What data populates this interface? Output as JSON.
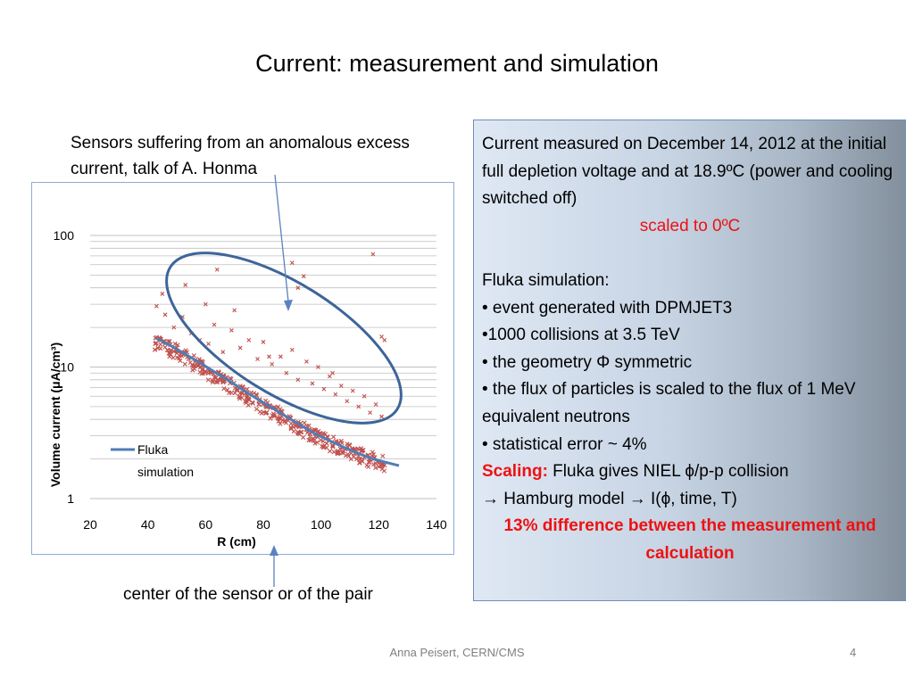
{
  "slide": {
    "title": "Current: measurement and simulation",
    "annotation_top": "Sensors suffering from an anomalous excess current, talk of A. Honma",
    "annotation_bottom": "center of the sensor or of the pair",
    "footer": "Anna Peisert, CERN/CMS",
    "page_number": "4"
  },
  "infobox": {
    "line1": "Current measured on December 14, 2012 at the initial full depletion voltage and at 18.9ºC (power and cooling switched off)",
    "scaled": "scaled to 0ºC",
    "fluka_heading": "Fluka simulation:",
    "bullet1": "• event generated with DPMJET3",
    "bullet2": "•1000 collisions at 3.5 TeV",
    "bullet3": "• the geometry Φ symmetric",
    "bullet4": "• the flux of particles is scaled to the flux of 1 MeV equivalent neutrons",
    "bullet5": "• statistical error ~ 4%",
    "scaling_label": "Scaling:",
    "scaling_text": " Fluka gives NIEL ϕ/p-p collision",
    "hamburg": "→ Hamburg model → I(ϕ, time, T)",
    "difference": "13% difference between the measurement and calculation"
  },
  "colors": {
    "line": "#4f7db5",
    "marker": "#c0504d",
    "ellipse": "#3d6599",
    "arrow": "#5a82c0",
    "emphasis": "#ee1111"
  },
  "chart_data": {
    "type": "scatter",
    "xlabel": "R (cm)",
    "ylabel": "Volume current (μA/cm³)",
    "xlim": [
      20,
      140
    ],
    "ylim": [
      1,
      100
    ],
    "yscale": "log",
    "x_ticks": [
      "20",
      "40",
      "60",
      "80",
      "100",
      "120",
      "140"
    ],
    "y_ticks": [
      "1",
      "10",
      "100"
    ],
    "grid": "horizontal",
    "legend": {
      "position": "bottom-left",
      "entries": [
        "Fluka",
        "simulation"
      ]
    },
    "fluka_simulation": {
      "x": [
        43,
        48,
        53,
        58,
        63,
        68,
        73,
        78,
        83,
        88,
        93,
        98,
        103,
        108,
        113,
        118,
        122,
        127
      ],
      "y": [
        16.5,
        14.5,
        12.5,
        10.8,
        9.2,
        7.9,
        6.7,
        5.7,
        4.9,
        4.2,
        3.6,
        3.1,
        2.75,
        2.45,
        2.2,
        2.0,
        1.9,
        1.78
      ]
    },
    "measurement_bulk": {
      "x": [
        42,
        46,
        50,
        54,
        58,
        62,
        66,
        70,
        74,
        78,
        82,
        86,
        90,
        94,
        98,
        102,
        106,
        110,
        114,
        118,
        122
      ],
      "y": [
        15.5,
        14.5,
        13.0,
        11.5,
        10.0,
        8.8,
        7.7,
        6.8,
        6.0,
        5.3,
        4.7,
        4.2,
        3.7,
        3.3,
        3.0,
        2.7,
        2.45,
        2.25,
        2.1,
        1.95,
        1.85
      ]
    },
    "measurement_anomalous": {
      "x": [
        43,
        46,
        49,
        52,
        55,
        58,
        61,
        63,
        66,
        69,
        72,
        75,
        78,
        80,
        83,
        86,
        88,
        90,
        92,
        95,
        97,
        99,
        101,
        103,
        105,
        107,
        109,
        111,
        113,
        115,
        117,
        119,
        121,
        122,
        64,
        90,
        92,
        94,
        118,
        121,
        45,
        53,
        60,
        70,
        82,
        104
      ],
      "y": [
        29,
        25,
        20,
        24,
        18,
        16,
        15,
        21,
        13,
        19,
        14,
        16,
        11.5,
        15.5,
        10.5,
        12,
        9,
        13.5,
        8,
        11,
        7.5,
        10,
        6.8,
        8.5,
        6.2,
        7.2,
        5.5,
        6.6,
        5,
        6,
        4.5,
        5.2,
        4.2,
        16,
        55,
        62,
        40,
        49,
        72,
        17,
        36,
        42,
        30,
        27,
        12,
        9
      ]
    }
  }
}
